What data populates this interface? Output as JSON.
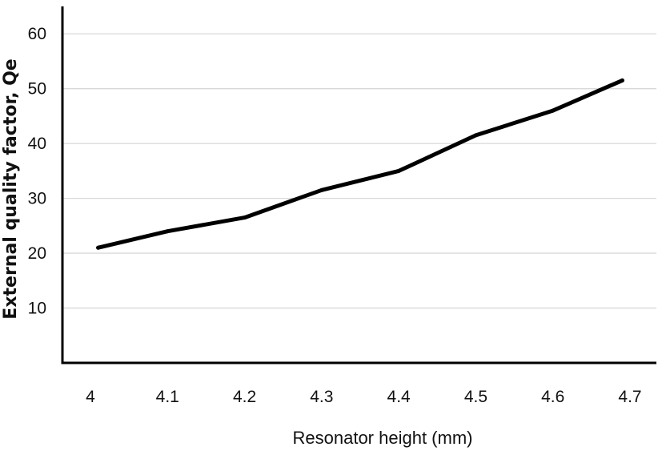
{
  "chart_data": {
    "type": "line",
    "title": "",
    "xlabel": "Resonator height (mm)",
    "ylabel": "External quality factor, Qe",
    "x_ticks": [
      "4",
      "4.1",
      "4.2",
      "4.3",
      "4.4",
      "4.5",
      "4.6",
      "4.7"
    ],
    "y_ticks": [
      "10",
      "20",
      "30",
      "40",
      "50",
      "60"
    ],
    "xlim": [
      4.0,
      4.7
    ],
    "ylim": [
      0,
      65
    ],
    "grid": "horizontal",
    "series": [
      {
        "x": [
          4.01,
          4.1,
          4.2,
          4.3,
          4.4,
          4.5,
          4.6,
          4.69
        ],
        "values": [
          21,
          24,
          26.5,
          31.5,
          35,
          41.5,
          46,
          51.5
        ]
      }
    ],
    "colors": {
      "line": "#000000",
      "grid": "#d9d9d9",
      "axis": "#000000"
    }
  }
}
